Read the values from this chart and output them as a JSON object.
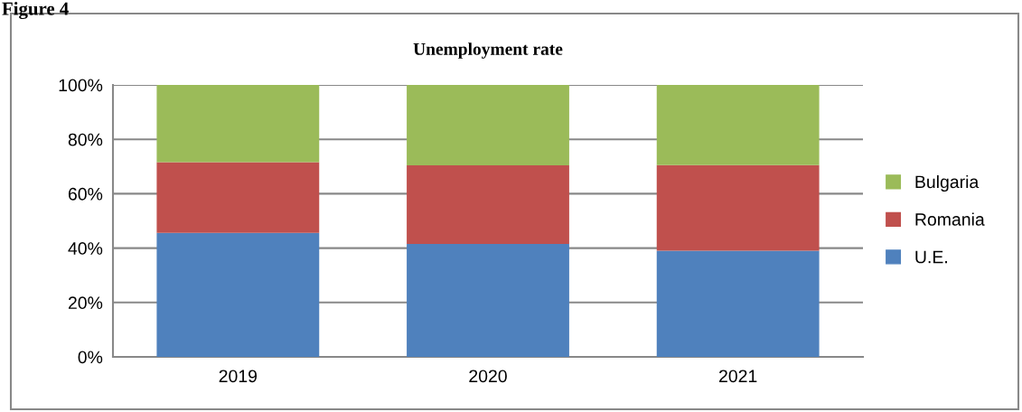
{
  "chart_data": {
    "type": "bar",
    "title": "Unemployment rate",
    "annotations": [
      "Figure 4"
    ],
    "categories": [
      "2019",
      "2020",
      "2021"
    ],
    "stacked": true,
    "series": [
      {
        "name": "U.E.",
        "color": "#4f81bd",
        "values": [
          45.6,
          41.5,
          39.0
        ]
      },
      {
        "name": "Romania",
        "color": "#c0504d",
        "values": [
          26.0,
          28.9,
          31.5
        ]
      },
      {
        "name": "Bulgaria",
        "color": "#9bbb59",
        "values": [
          28.4,
          29.6,
          29.5
        ]
      }
    ],
    "ylim": [
      0,
      100
    ],
    "yticks": [
      {
        "value": 0,
        "label": "0%"
      },
      {
        "value": 20,
        "label": "20%"
      },
      {
        "value": 40,
        "label": "40%"
      },
      {
        "value": 60,
        "label": "60%"
      },
      {
        "value": 80,
        "label": "80%"
      },
      {
        "value": 100,
        "label": "100%"
      }
    ],
    "grid": "y",
    "legend": "right"
  }
}
